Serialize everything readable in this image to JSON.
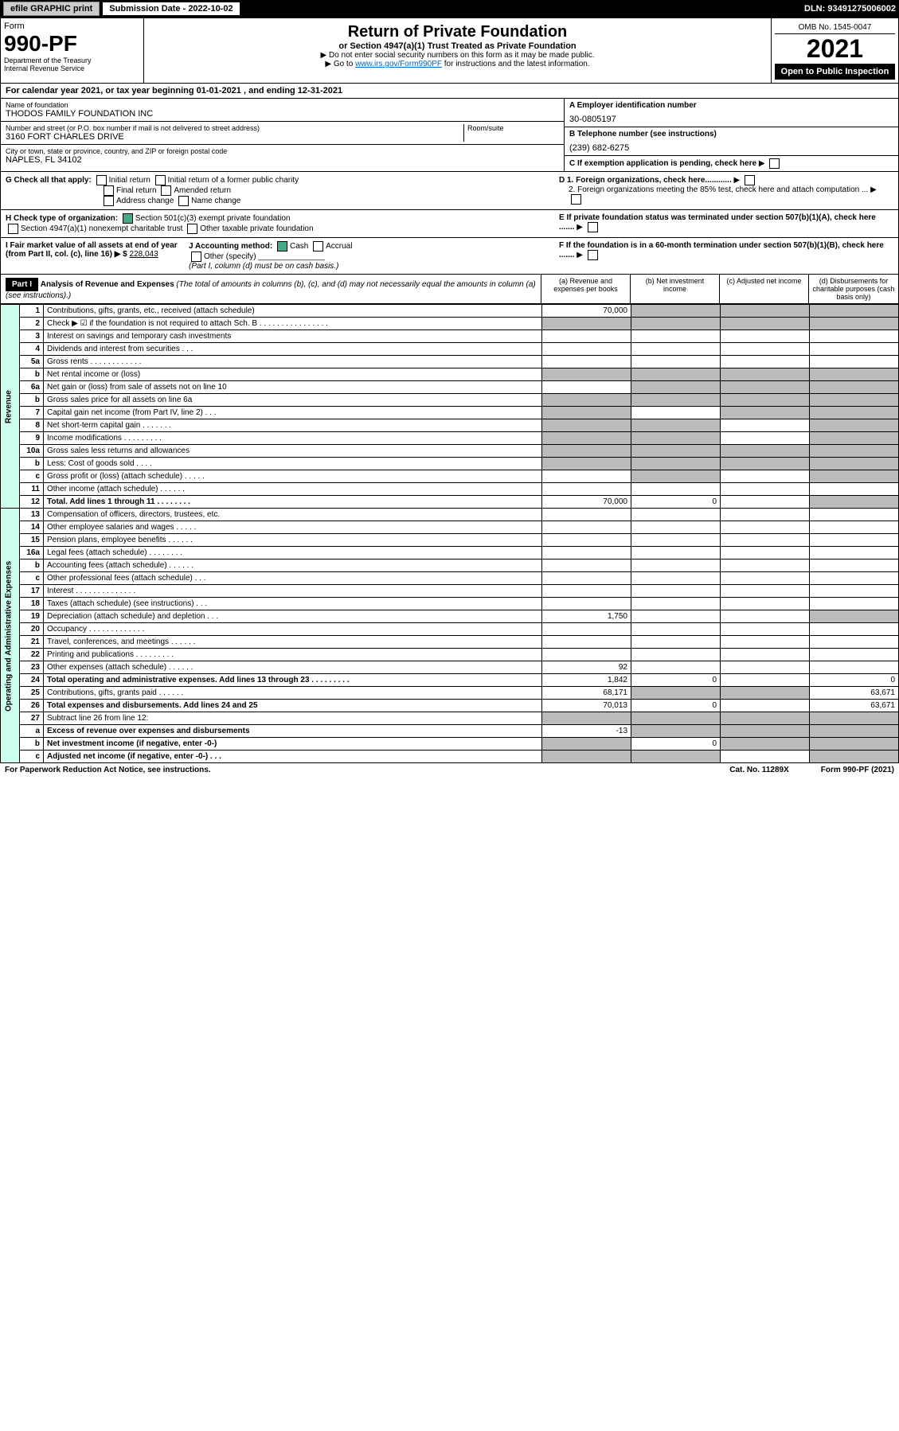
{
  "bar": {
    "efile": "efile GRAPHIC print",
    "sub_label": "Submission Date - 2022-10-02",
    "dln": "DLN: 93491275006002"
  },
  "header": {
    "form": "Form",
    "num": "990-PF",
    "dept": "Department of the Treasury\nInternal Revenue Service",
    "title": "Return of Private Foundation",
    "sub": "or Section 4947(a)(1) Trust Treated as Private Foundation",
    "note1": "▶ Do not enter social security numbers on this form as it may be made public.",
    "note2_pre": "▶ Go to ",
    "note2_link": "www.irs.gov/Form990PF",
    "note2_post": " for instructions and the latest information.",
    "omb": "OMB No. 1545-0047",
    "year": "2021",
    "open": "Open to Public Inspection"
  },
  "cal": "For calendar year 2021, or tax year beginning 01-01-2021             , and ending 12-31-2021",
  "info": {
    "name_label": "Name of foundation",
    "name": "THODOS FAMILY FOUNDATION INC",
    "addr_label": "Number and street (or P.O. box number if mail is not delivered to street address)",
    "addr": "3160 FORT CHARLES DRIVE",
    "room_label": "Room/suite",
    "city_label": "City or town, state or province, country, and ZIP or foreign postal code",
    "city": "NAPLES, FL  34102",
    "a_label": "A Employer identification number",
    "a_val": "30-0805197",
    "b_label": "B Telephone number (see instructions)",
    "b_val": "(239) 682-6275",
    "c_label": "C If exemption application is pending, check here"
  },
  "g": {
    "label": "G Check all that apply:",
    "opts": [
      "Initial return",
      "Initial return of a former public charity",
      "Final return",
      "Amended return",
      "Address change",
      "Name change"
    ],
    "d1": "D 1. Foreign organizations, check here............",
    "d2": "2. Foreign organizations meeting the 85% test, check here and attach computation ..."
  },
  "h": {
    "label": "H Check type of organization:",
    "opt1": "Section 501(c)(3) exempt private foundation",
    "opt2": "Section 4947(a)(1) nonexempt charitable trust",
    "opt3": "Other taxable private foundation",
    "e": "E  If private foundation status was terminated under section 507(b)(1)(A), check here ......."
  },
  "i": {
    "label": "I Fair market value of all assets at end of year (from Part II, col. (c), line 16) ▶ $",
    "val": "228,043",
    "j_label": "J Accounting method:",
    "j_cash": "Cash",
    "j_accrual": "Accrual",
    "j_other": "Other (specify)",
    "j_note": "(Part I, column (d) must be on cash basis.)",
    "f": "F  If the foundation is in a 60-month termination under section 507(b)(1)(B), check here ......."
  },
  "part1": {
    "hdr": "Part I",
    "title": "Analysis of Revenue and Expenses",
    "sub": "(The total of amounts in columns (b), (c), and (d) may not necessarily equal the amounts in column (a) (see instructions).)",
    "cols": [
      "(a) Revenue and expenses per books",
      "(b) Net investment income",
      "(c) Adjusted net income",
      "(d) Disbursements for charitable purposes (cash basis only)"
    ]
  },
  "sections": {
    "revenue": "Revenue",
    "opexp": "Operating and Administrative Expenses"
  },
  "rows": [
    {
      "n": "1",
      "d": "Contributions, gifts, grants, etc., received (attach schedule)",
      "a": "70,000",
      "grey": [
        1,
        2,
        3
      ]
    },
    {
      "n": "2",
      "d": "Check ▶ ☑ if the foundation is not required to attach Sch. B   .  .  .  .  .  .  .  .  .  .  .  .  .  .  .  .",
      "grey": [
        0,
        1,
        2,
        3
      ]
    },
    {
      "n": "3",
      "d": "Interest on savings and temporary cash investments"
    },
    {
      "n": "4",
      "d": "Dividends and interest from securities   .  .  ."
    },
    {
      "n": "5a",
      "d": "Gross rents   .  .  .  .  .  .  .  .  .  .  .  ."
    },
    {
      "n": "b",
      "d": "Net rental income or (loss)",
      "grey": [
        0,
        1,
        2,
        3
      ]
    },
    {
      "n": "6a",
      "d": "Net gain or (loss) from sale of assets not on line 10",
      "grey": [
        1,
        2,
        3
      ]
    },
    {
      "n": "b",
      "d": "Gross sales price for all assets on line 6a",
      "grey": [
        0,
        1,
        2,
        3
      ]
    },
    {
      "n": "7",
      "d": "Capital gain net income (from Part IV, line 2)   .  .  .",
      "grey": [
        0,
        2,
        3
      ]
    },
    {
      "n": "8",
      "d": "Net short-term capital gain   .  .  .  .  .  .  .",
      "grey": [
        0,
        1,
        3
      ]
    },
    {
      "n": "9",
      "d": "Income modifications   .  .  .  .  .  .  .  .  .",
      "grey": [
        0,
        1,
        3
      ]
    },
    {
      "n": "10a",
      "d": "Gross sales less returns and allowances",
      "grey": [
        0,
        1,
        2,
        3
      ]
    },
    {
      "n": "b",
      "d": "Less: Cost of goods sold   .  .  .  .",
      "grey": [
        0,
        1,
        2,
        3
      ]
    },
    {
      "n": "c",
      "d": "Gross profit or (loss) (attach schedule)   .  .  .  .  .",
      "grey": [
        1,
        3
      ]
    },
    {
      "n": "11",
      "d": "Other income (attach schedule)   .  .  .  .  .  ."
    },
    {
      "n": "12",
      "d": "Total. Add lines 1 through 11   .  .  .  .  .  .  .  .",
      "bold": true,
      "a": "70,000",
      "b": "0",
      "grey": [
        3
      ]
    },
    {
      "n": "13",
      "d": "Compensation of officers, directors, trustees, etc."
    },
    {
      "n": "14",
      "d": "Other employee salaries and wages   .  .  .  .  ."
    },
    {
      "n": "15",
      "d": "Pension plans, employee benefits   .  .  .  .  .  ."
    },
    {
      "n": "16a",
      "d": "Legal fees (attach schedule)  .  .  .  .  .  .  .  ."
    },
    {
      "n": "b",
      "d": "Accounting fees (attach schedule)   .  .  .  .  .  ."
    },
    {
      "n": "c",
      "d": "Other professional fees (attach schedule)   .  .  ."
    },
    {
      "n": "17",
      "d": "Interest   .  .  .  .  .  .  .  .  .  .  .  .  .  ."
    },
    {
      "n": "18",
      "d": "Taxes (attach schedule) (see instructions)   .  .  ."
    },
    {
      "n": "19",
      "d": "Depreciation (attach schedule) and depletion   .  .  .",
      "a": "1,750",
      "grey": [
        3
      ]
    },
    {
      "n": "20",
      "d": "Occupancy   .  .  .  .  .  .  .  .  .  .  .  .  ."
    },
    {
      "n": "21",
      "d": "Travel, conferences, and meetings   .  .  .  .  .  ."
    },
    {
      "n": "22",
      "d": "Printing and publications   .  .  .  .  .  .  .  .  ."
    },
    {
      "n": "23",
      "d": "Other expenses (attach schedule)   .  .  .  .  .  .",
      "a": "92"
    },
    {
      "n": "24",
      "d": "Total operating and administrative expenses. Add lines 13 through 23   .  .  .  .  .  .  .  .  .",
      "bold": true,
      "a": "1,842",
      "b": "0",
      "dd": "0"
    },
    {
      "n": "25",
      "d": "Contributions, gifts, grants paid   .  .  .  .  .  .",
      "a": "68,171",
      "dd": "63,671",
      "grey": [
        1,
        2
      ]
    },
    {
      "n": "26",
      "d": "Total expenses and disbursements. Add lines 24 and 25",
      "bold": true,
      "a": "70,013",
      "b": "0",
      "dd": "63,671"
    },
    {
      "n": "27",
      "d": "Subtract line 26 from line 12:",
      "grey": [
        0,
        1,
        2,
        3
      ]
    },
    {
      "n": "a",
      "d": "Excess of revenue over expenses and disbursements",
      "bold": true,
      "a": "-13",
      "grey": [
        1,
        2,
        3
      ]
    },
    {
      "n": "b",
      "d": "Net investment income (if negative, enter -0-)",
      "bold": true,
      "b": "0",
      "grey": [
        0,
        2,
        3
      ]
    },
    {
      "n": "c",
      "d": "Adjusted net income (if negative, enter -0-)   .  .  .",
      "bold": true,
      "grey": [
        0,
        1,
        3
      ]
    }
  ],
  "footer": {
    "f1": "For Paperwork Reduction Act Notice, see instructions.",
    "f2": "Cat. No. 11289X",
    "f3": "Form 990-PF (2021)"
  }
}
